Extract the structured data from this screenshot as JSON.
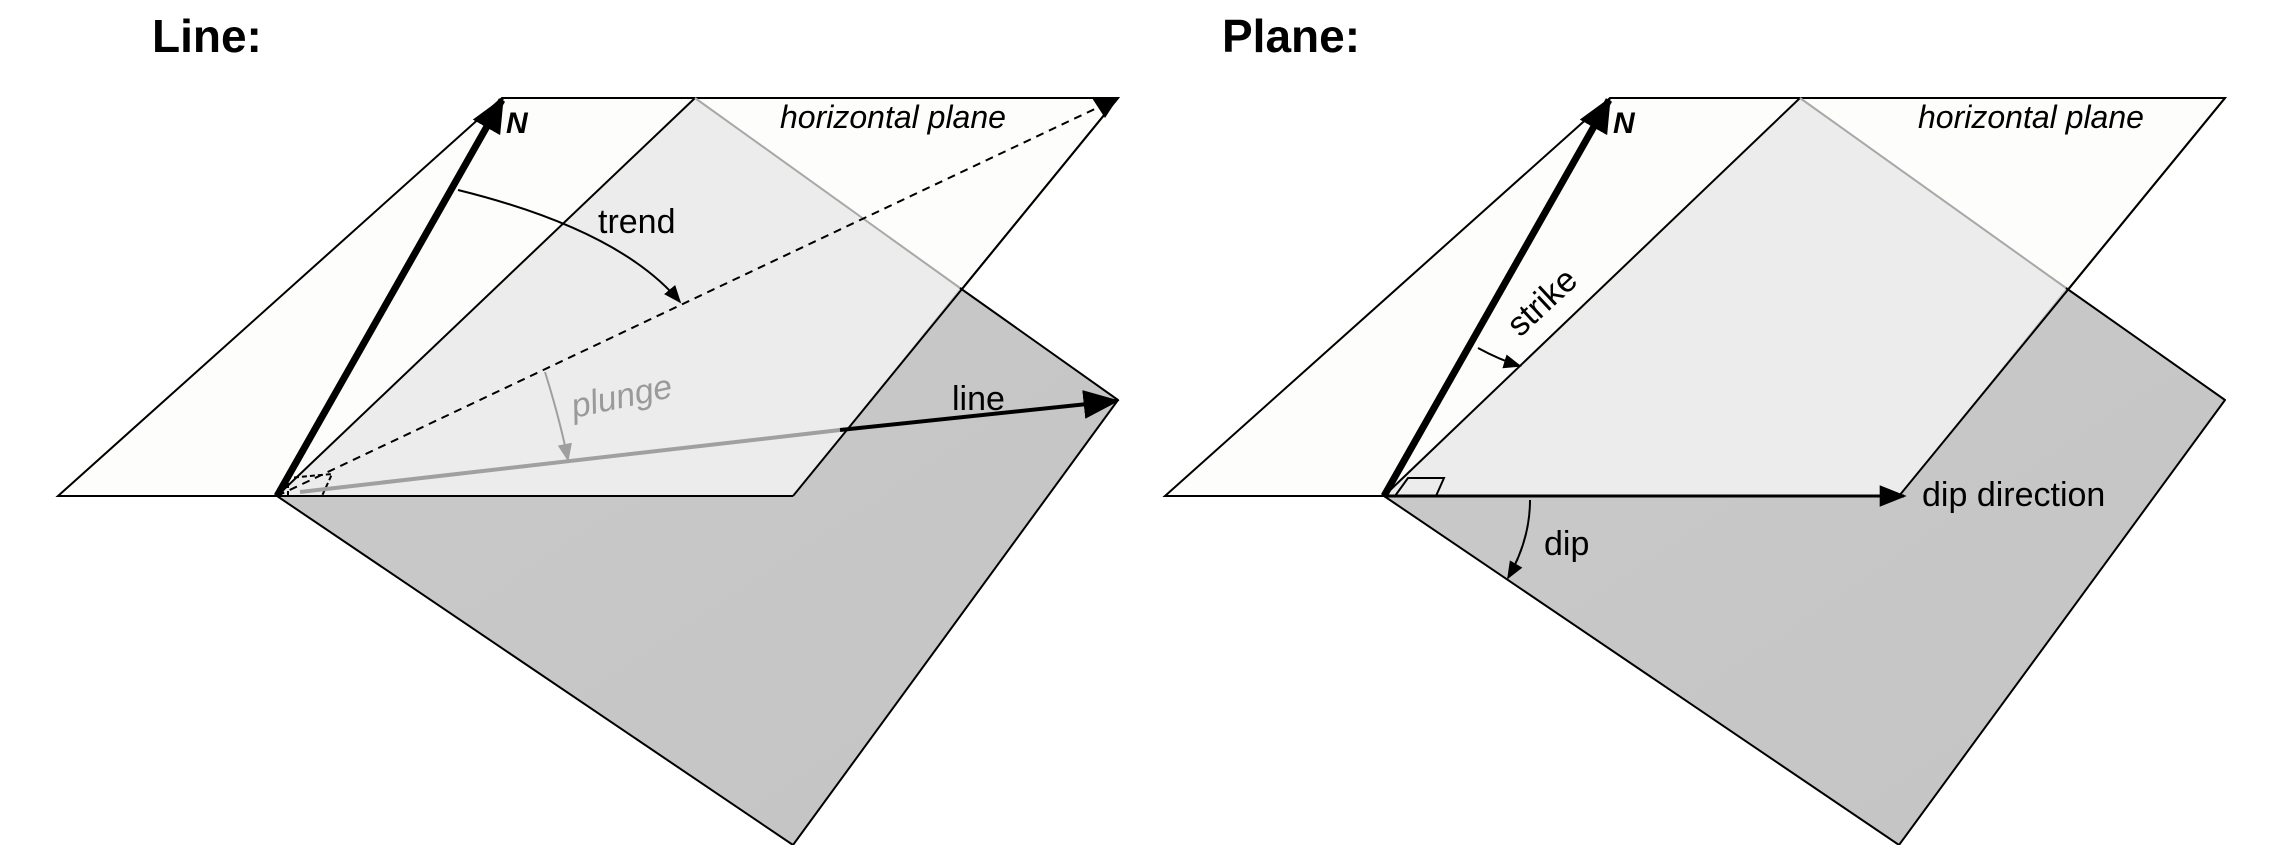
{
  "colors": {
    "horizontal_plane": "#fdfdfb",
    "inclined_plane_above": "#ececec",
    "inclined_plane_below": "#c6c6c6",
    "hidden_line": "#9f9f9f",
    "ink": "#000000"
  },
  "line_panel": {
    "title": "Line:",
    "north_label": "N",
    "plane_label": "horizontal plane",
    "trend_label": "trend",
    "plunge_label": "plunge",
    "line_label": "line"
  },
  "plane_panel": {
    "title": "Plane:",
    "north_label": "N",
    "plane_label": "horizontal plane",
    "strike_label": "strike",
    "dip_direction_label": "dip direction",
    "dip_label": "dip"
  }
}
